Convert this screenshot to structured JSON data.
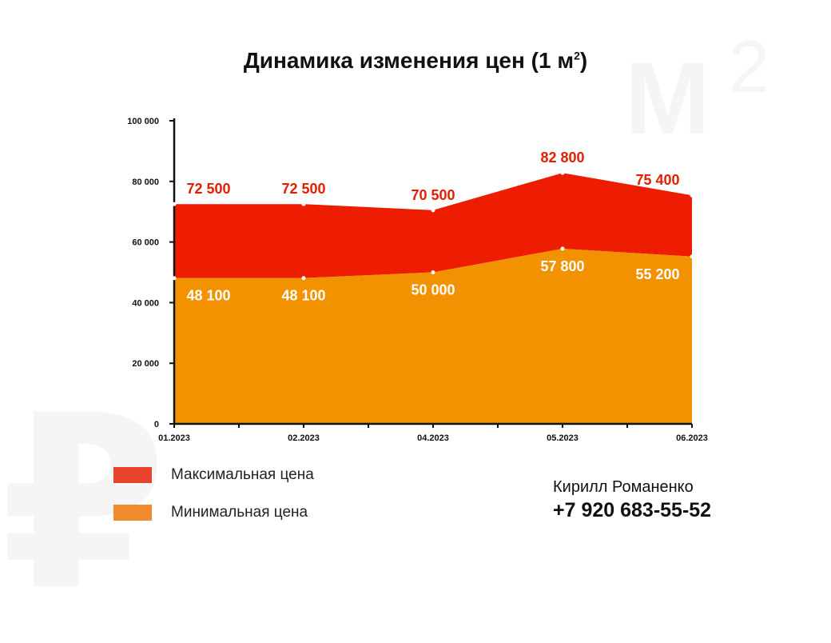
{
  "title": "Динамика изменения цен (1 м",
  "title_sup": "2",
  "watermarks": {
    "m": "М",
    "m_sup": "2",
    "ruble": "₽"
  },
  "colors": {
    "max": "#ee1c00",
    "min": "#f29200",
    "max_label": "#e31e00",
    "min_label": "#ffffff",
    "legend_max": "#e8432d",
    "legend_min": "#f28a2e"
  },
  "legend": [
    {
      "label": "Максимальная цена"
    },
    {
      "label": "Минимальная цена"
    }
  ],
  "contact": {
    "name": "Кирилл Романенко",
    "phone": "+7 920 683-55-52"
  },
  "chart_data": {
    "type": "area",
    "categories": [
      "01.2023",
      "02.2023",
      "04.2023",
      "05.2023",
      "06.2023"
    ],
    "series": [
      {
        "name": "Максимальная цена",
        "values": [
          72500,
          72500,
          70500,
          82800,
          75400
        ],
        "labels": [
          "72 500",
          "72 500",
          "70 500",
          "82 800",
          "75 400"
        ]
      },
      {
        "name": "Минимальная цена",
        "values": [
          48100,
          48100,
          50000,
          57800,
          55200
        ],
        "labels": [
          "48 100",
          "48 100",
          "50 000",
          "57 800",
          "55 200"
        ]
      }
    ],
    "yticks": [
      0,
      20000,
      40000,
      60000,
      80000,
      100000
    ],
    "ytick_labels": [
      "0",
      "20 000",
      "40 000",
      "60 000",
      "80 000",
      "100 000"
    ],
    "ylim": [
      0,
      100000
    ],
    "grid": false,
    "legend_position": "bottom-left"
  }
}
